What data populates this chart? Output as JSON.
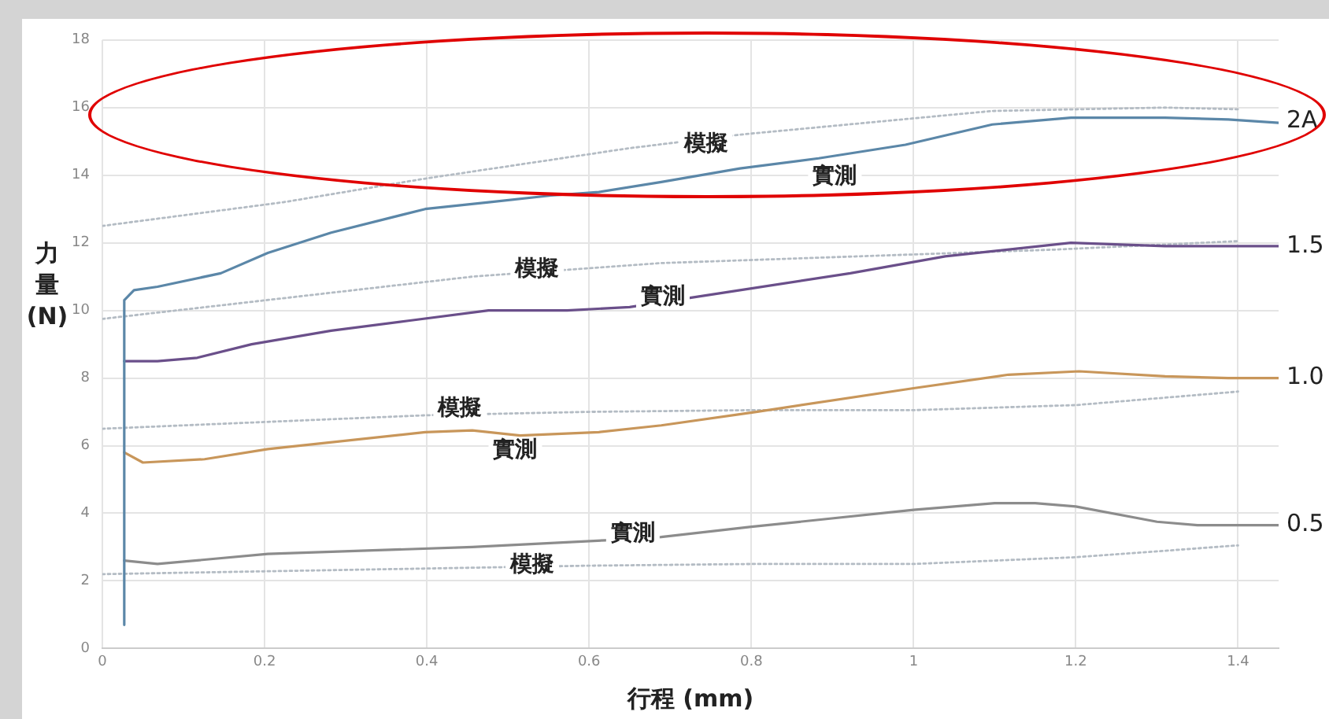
{
  "chart_data": {
    "type": "line",
    "xlabel": "行程 (mm)",
    "ylabel": "力量 (N)",
    "xlim": [
      0,
      1.45
    ],
    "xticks": [
      0,
      0.2,
      0.4,
      0.6,
      0.8,
      1,
      1.2,
      1.4
    ],
    "ylim": [
      0,
      18
    ],
    "yticks": [
      0,
      2,
      4,
      6,
      8,
      10,
      12,
      14,
      16,
      18
    ],
    "grid": true,
    "legend": false,
    "marker": "none",
    "series": [
      {
        "color": "#5b87a8",
        "line_style": "solid",
        "x": [
          0.027,
          0.027,
          0.039,
          0.068,
          0.146,
          0.204,
          0.282,
          0.398,
          0.476,
          0.553,
          0.612,
          0.689,
          0.786,
          0.883,
          0.99,
          1.097,
          1.194,
          1.31,
          1.388,
          1.45
        ],
        "values": [
          0.7,
          10.3,
          10.6,
          10.7,
          11.1,
          11.7,
          12.3,
          13.0,
          13.2,
          13.4,
          13.5,
          13.8,
          14.2,
          14.5,
          14.9,
          15.5,
          15.7,
          15.7,
          15.65,
          15.55
        ]
      },
      {
        "color": "#b4bcc4",
        "line_style": "dotted",
        "x": [
          0,
          0.223,
          0.398,
          0.65,
          0.786,
          1.097,
          1.31,
          1.4
        ],
        "values": [
          12.5,
          13.2,
          13.9,
          14.8,
          15.2,
          15.9,
          16.0,
          15.95
        ]
      },
      {
        "color": "#6a4f8a",
        "line_style": "solid",
        "x": [
          0.027,
          0.068,
          0.117,
          0.184,
          0.282,
          0.379,
          0.476,
          0.573,
          0.65,
          0.786,
          0.922,
          1.039,
          1.194,
          1.31,
          1.45
        ],
        "values": [
          8.5,
          8.5,
          8.6,
          9.0,
          9.4,
          9.7,
          10.0,
          10.0,
          10.1,
          10.6,
          11.1,
          11.6,
          12.0,
          11.9,
          11.9
        ]
      },
      {
        "color": "#b4bcc4",
        "line_style": "dotted",
        "x": [
          0,
          0.456,
          0.689,
          1.175,
          1.4
        ],
        "values": [
          9.75,
          11.0,
          11.4,
          11.8,
          12.05
        ]
      },
      {
        "color": "#c8965a",
        "line_style": "solid",
        "x": [
          0.027,
          0.05,
          0.126,
          0.204,
          0.398,
          0.456,
          0.515,
          0.612,
          0.689,
          0.806,
          1.0,
          1.117,
          1.204,
          1.31,
          1.388,
          1.45
        ],
        "values": [
          5.8,
          5.5,
          5.6,
          5.9,
          6.4,
          6.45,
          6.3,
          6.4,
          6.6,
          7.0,
          7.7,
          8.1,
          8.2,
          8.05,
          8.0,
          8.0
        ]
      },
      {
        "color": "#b4bcc4",
        "line_style": "dotted",
        "x": [
          0,
          0.4,
          0.6,
          0.8,
          1.0,
          1.2,
          1.4
        ],
        "values": [
          6.5,
          6.9,
          7.0,
          7.05,
          7.05,
          7.2,
          7.6
        ]
      },
      {
        "color": "#8c8c8c",
        "line_style": "solid",
        "x": [
          0.027,
          0.068,
          0.204,
          0.456,
          0.62,
          0.689,
          0.8,
          1.0,
          1.1,
          1.15,
          1.2,
          1.3,
          1.35,
          1.45
        ],
        "values": [
          2.6,
          2.5,
          2.8,
          3.0,
          3.2,
          3.3,
          3.6,
          4.1,
          4.3,
          4.3,
          4.2,
          3.75,
          3.65,
          3.65
        ]
      },
      {
        "color": "#b4bcc4",
        "line_style": "dotted",
        "x": [
          0,
          0.6,
          0.8,
          1.0,
          1.2,
          1.4
        ],
        "values": [
          2.2,
          2.45,
          2.5,
          2.5,
          2.7,
          3.05
        ]
      }
    ],
    "annotations": [
      {
        "text": "模擬",
        "x": 0.744,
        "y": 14.9
      },
      {
        "text": "實測",
        "x": 0.903,
        "y": 13.95
      },
      {
        "text": "模擬",
        "x": 0.536,
        "y": 11.2
      },
      {
        "text": "實測",
        "x": 0.691,
        "y": 10.4
      },
      {
        "text": "模擬",
        "x": 0.441,
        "y": 7.1
      },
      {
        "text": "實測",
        "x": 0.509,
        "y": 5.85
      },
      {
        "text": "實測",
        "x": 0.654,
        "y": 3.4
      },
      {
        "text": "模擬",
        "x": 0.53,
        "y": 2.45
      },
      {
        "text": "2A",
        "x": 1.45,
        "y": 15.6
      },
      {
        "text": "1.5",
        "x": 1.45,
        "y": 11.9
      },
      {
        "text": "1.0",
        "x": 1.45,
        "y": 8.0
      },
      {
        "text": "0.5",
        "x": 1.45,
        "y": 3.65
      }
    ]
  }
}
